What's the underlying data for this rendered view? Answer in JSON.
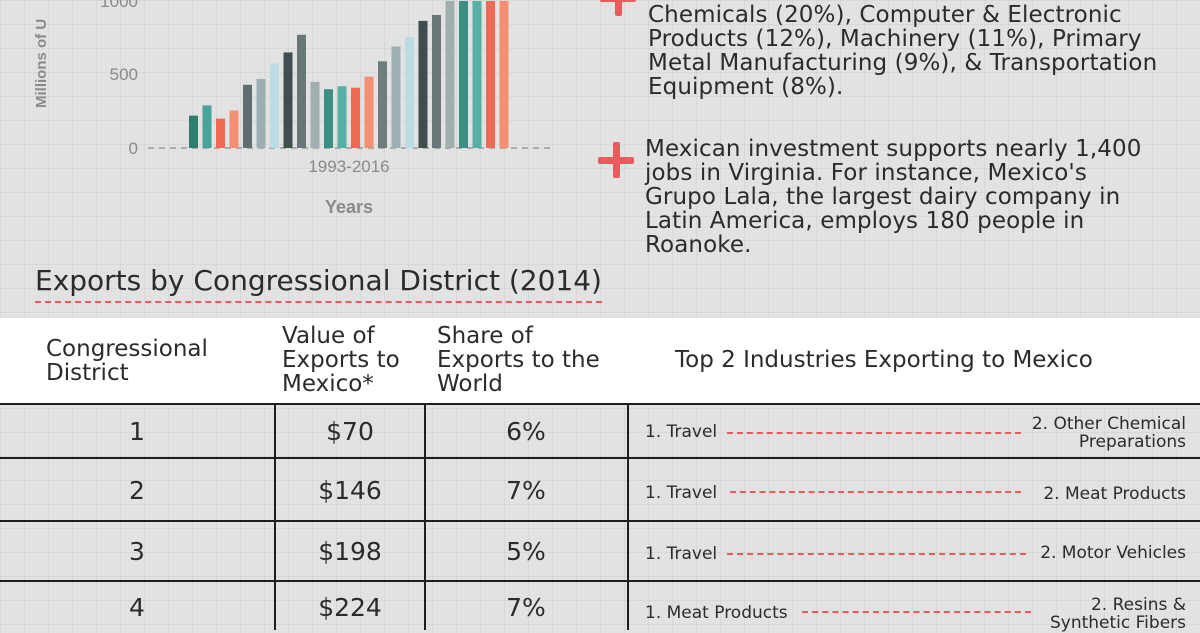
{
  "chart_data": {
    "type": "bar",
    "ylabel": "Millions of U",
    "xlabel": "Years",
    "category_label": "1993-2016",
    "yticks": [
      "0",
      "500",
      "1000"
    ],
    "ylim": [
      0,
      1000
    ],
    "values": [
      220,
      290,
      200,
      255,
      430,
      470,
      575,
      650,
      770,
      450,
      400,
      420,
      410,
      485,
      590,
      690,
      755,
      865,
      905,
      1000,
      1000,
      1000,
      1000,
      1000
    ],
    "colors": [
      "#2e7d6e",
      "#4aa39a",
      "#ee6a55",
      "#f58f74",
      "#5f6d70",
      "#9cb0b4",
      "#b9dde3",
      "#3f4d4f",
      "#6a7779",
      "#a2afb1",
      "#3a8f83",
      "#56b0a4",
      "#ee6a55",
      "#f58f74",
      "#6f7c7e",
      "#9cb0b4",
      "#b9dde3",
      "#3f4d4f",
      "#6a7779",
      "#a2afb1",
      "#3a8f83",
      "#56b0a4",
      "#ee6a55",
      "#f58f74"
    ]
  },
  "bullets": {
    "b1_text": "Chemicals (20%), Computer & Electronic Products (12%), Machinery (11%), Primary Metal Manufacturing (9%), &  Transportation Equipment (8%).",
    "b2_text": "Mexican investment supports nearly 1,400 jobs in Virginia. For instance, Mexico's Grupo Lala, the largest dairy company in Latin America, employs 180 people in Roanoke."
  },
  "section": {
    "title": "Exports by Congressional District (2014)"
  },
  "table": {
    "headers": {
      "district": "Congressional District",
      "value": "Value of Exports to Mexico*",
      "share": "Share of Exports to the World",
      "industries": "Top 2 Industries Exporting to Mexico"
    },
    "rows": [
      {
        "district": "1",
        "value": "$70",
        "share": "6%",
        "ind1": "1. Travel",
        "ind2": "2. Other Chemical Preparations"
      },
      {
        "district": "2",
        "value": "$146",
        "share": "7%",
        "ind1": "1. Travel",
        "ind2": "2. Meat Products"
      },
      {
        "district": "3",
        "value": "$198",
        "share": "5%",
        "ind1": "1. Travel",
        "ind2": "2. Motor Vehicles"
      },
      {
        "district": "4",
        "value": "$224",
        "share": "7%",
        "ind1": "1. Meat Products",
        "ind2": "2. Resins & Synthetic Fibers"
      }
    ]
  },
  "colors": {
    "accent": "#ea5b5b",
    "rule": "#1e1e1e",
    "header_bg": "#ffffff"
  }
}
